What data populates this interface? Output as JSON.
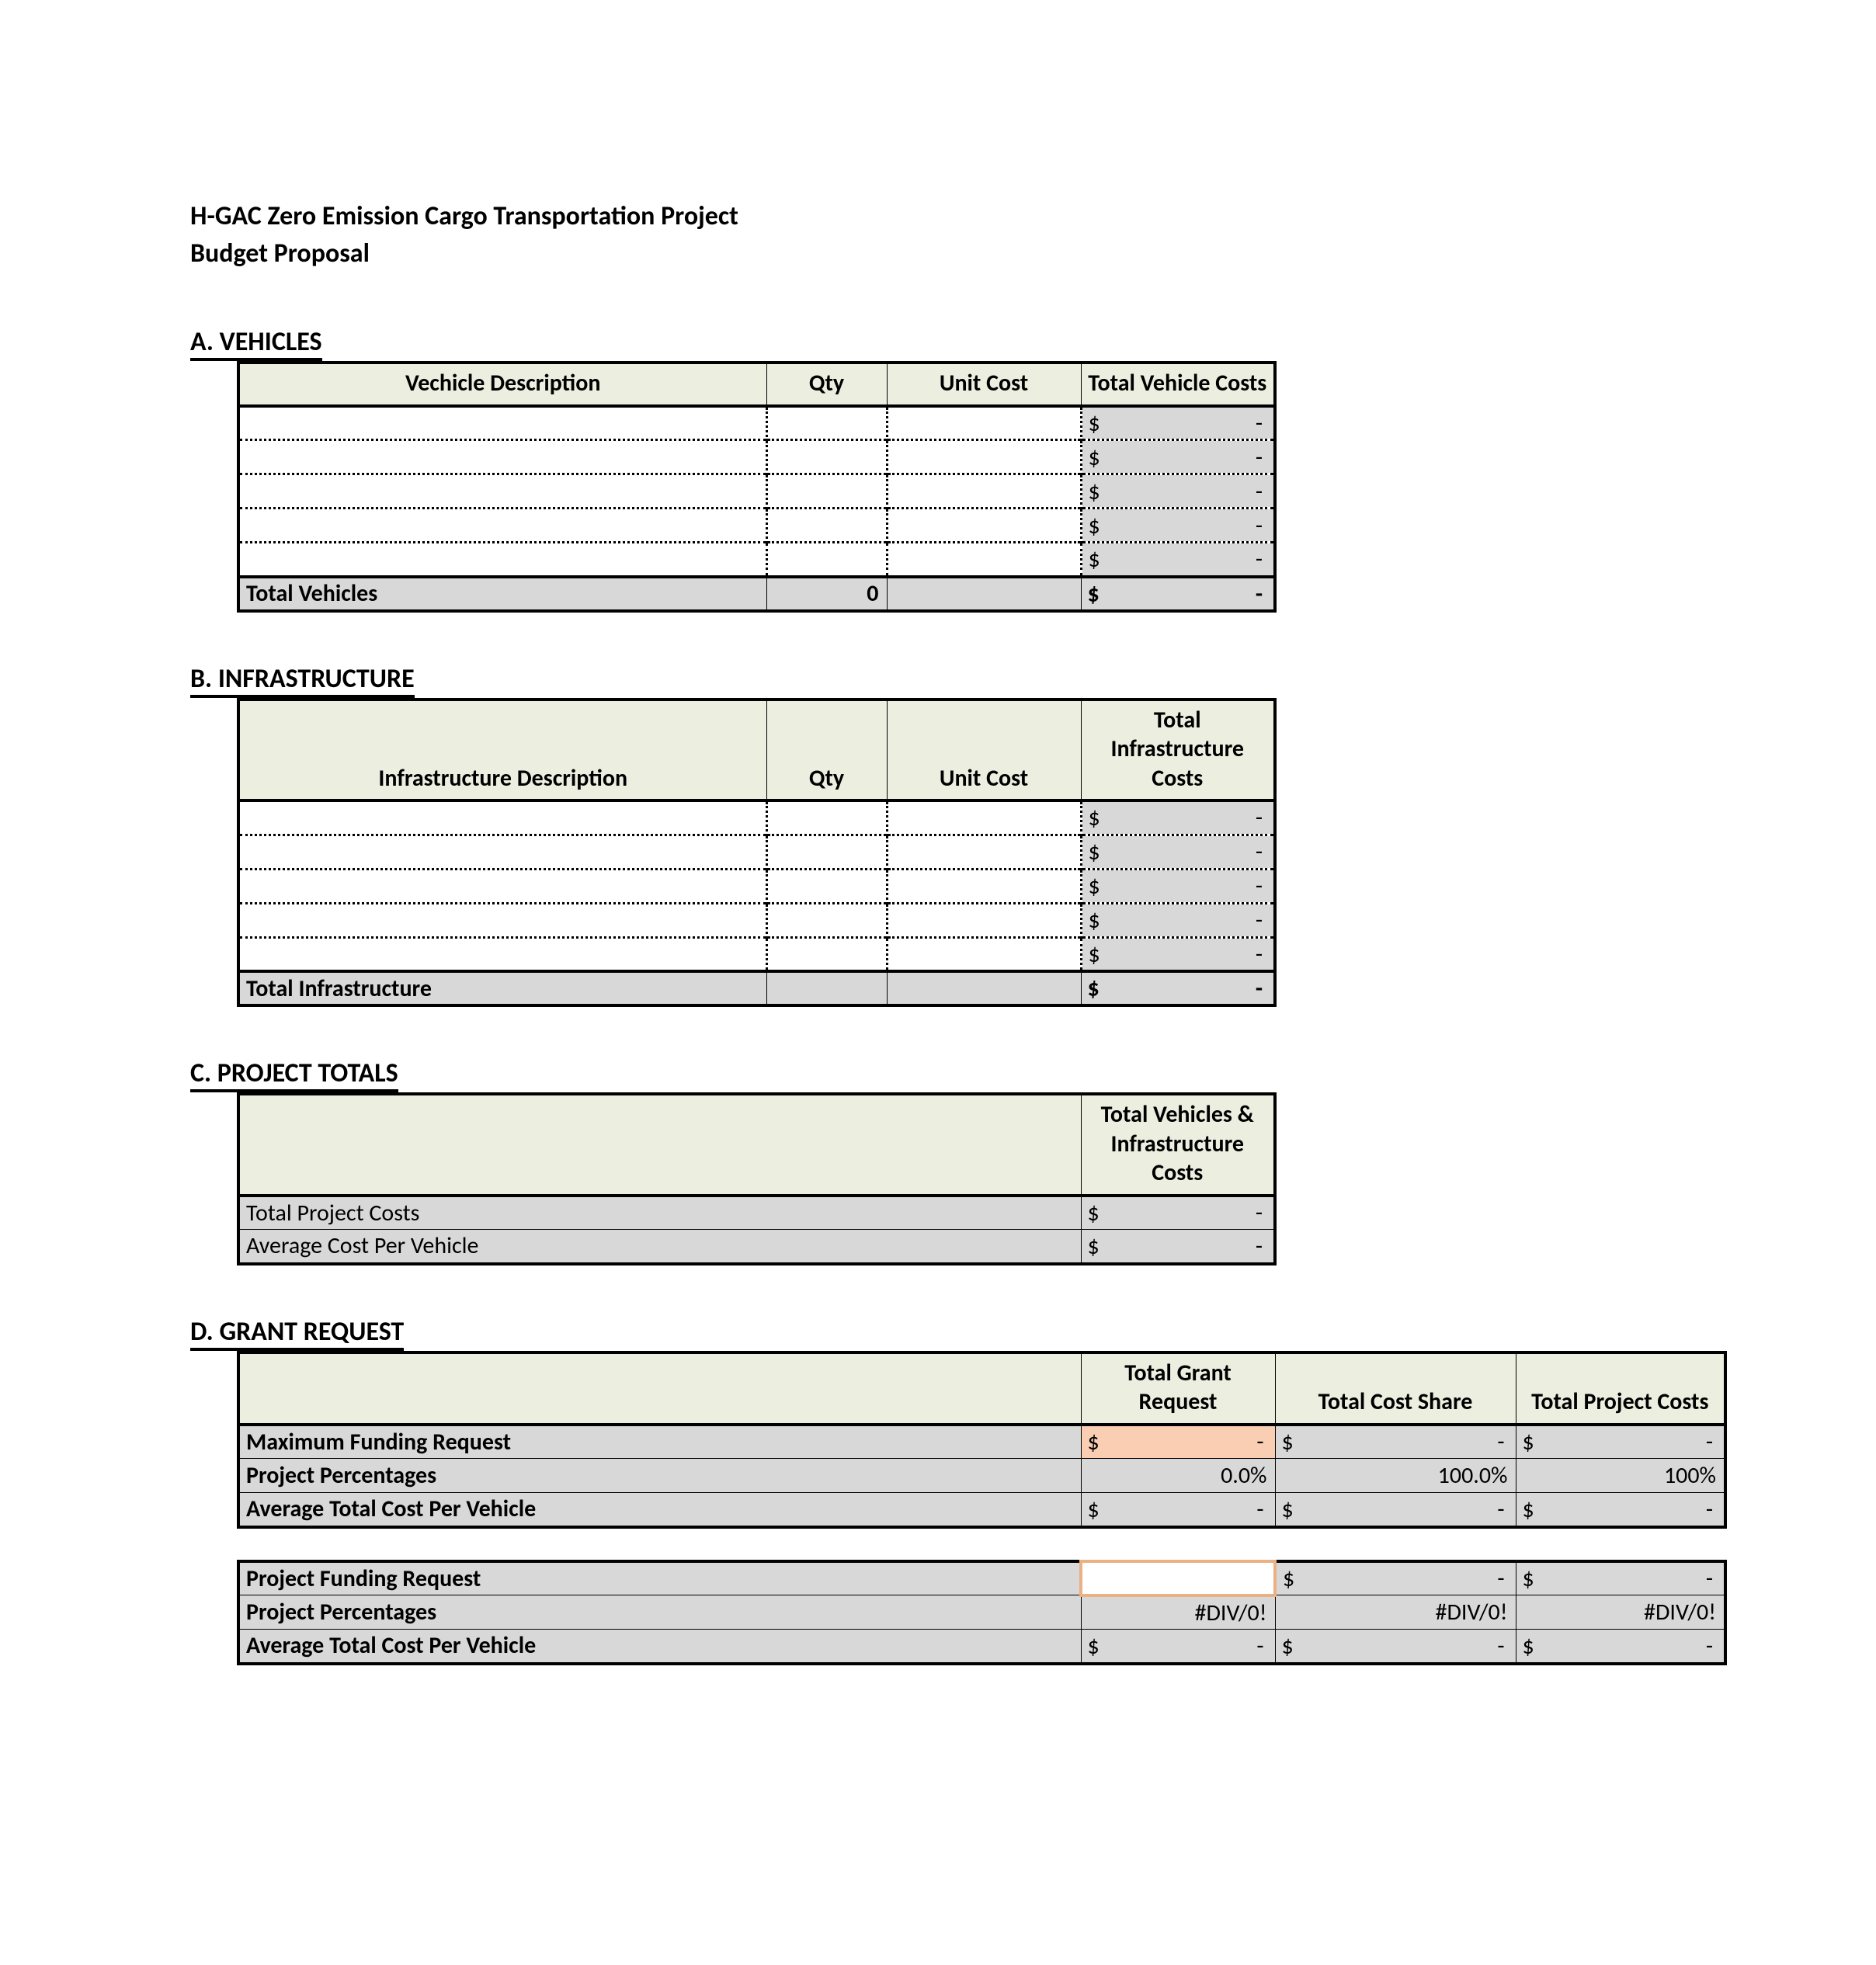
{
  "colors": {
    "header_bg": "#eceee0",
    "grey_bg": "#d8d8d8",
    "highlight_bg": "#f9ceb2",
    "edit_border": "#eab184",
    "page_bg": "#ffffff",
    "text": "#000000",
    "table_border": "#000000"
  },
  "typography": {
    "font_family": "Calibri, Arial, sans-serif",
    "title_fontsize": 34,
    "heading_fontsize": 34,
    "cell_fontsize": 30,
    "bold_weight": 700
  },
  "title": {
    "line1": "H-GAC Zero Emission Cargo Transportation Project",
    "line2": "Budget Proposal"
  },
  "currency_symbol": "$",
  "dash": "-",
  "sections": {
    "a": {
      "heading": "A. VEHICLES",
      "columns": {
        "desc": "Vechicle Description",
        "qty": "Qty",
        "unit": "Unit Cost",
        "total": "Total Vehicle Costs"
      },
      "rows": [
        {
          "desc": "",
          "qty": "",
          "unit": "",
          "total": "-"
        },
        {
          "desc": "",
          "qty": "",
          "unit": "",
          "total": "-"
        },
        {
          "desc": "",
          "qty": "",
          "unit": "",
          "total": "-"
        },
        {
          "desc": "",
          "qty": "",
          "unit": "",
          "total": "-"
        },
        {
          "desc": "",
          "qty": "",
          "unit": "",
          "total": "-"
        }
      ],
      "total_row": {
        "label": "Total Vehicles",
        "qty": "0",
        "unit": "",
        "total": "-"
      }
    },
    "b": {
      "heading": "B. INFRASTRUCTURE",
      "columns": {
        "desc": "Infrastructure Description",
        "qty": "Qty",
        "unit": "Unit Cost",
        "total": "Total Infrastructure Costs"
      },
      "rows": [
        {
          "desc": "",
          "qty": "",
          "unit": "",
          "total": "-"
        },
        {
          "desc": "",
          "qty": "",
          "unit": "",
          "total": "-"
        },
        {
          "desc": "",
          "qty": "",
          "unit": "",
          "total": "-"
        },
        {
          "desc": "",
          "qty": "",
          "unit": "",
          "total": "-"
        },
        {
          "desc": "",
          "qty": "",
          "unit": "",
          "total": "-"
        }
      ],
      "total_row": {
        "label": "Total Infrastructure",
        "qty": "",
        "unit": "",
        "total": "-"
      }
    },
    "c": {
      "heading": "C. PROJECT TOTALS",
      "columns": {
        "total": "Total Vehicles & Infrastructure Costs"
      },
      "rows": [
        {
          "label": "Total Project Costs",
          "total": "-"
        },
        {
          "label": "Average Cost Per Vehicle",
          "total": "-"
        }
      ]
    },
    "d": {
      "heading": "D. GRANT REQUEST",
      "columns": {
        "grant": "Total Grant Request",
        "share": "Total Cost Share",
        "proj": "Total Project Costs"
      },
      "table1": [
        {
          "label": "Maximum Funding Request",
          "grant_cur": true,
          "grant_highlight": true,
          "grant": "-",
          "share_cur": true,
          "share": "-",
          "proj_cur": true,
          "proj": "-"
        },
        {
          "label": "Project Percentages",
          "grant_cur": false,
          "grant": "0.0%",
          "share_cur": false,
          "share": "100.0%",
          "proj_cur": false,
          "proj": "100%"
        },
        {
          "label": "Average Total Cost Per Vehicle",
          "grant_cur": true,
          "grant": "-",
          "share_cur": true,
          "share": "-",
          "proj_cur": true,
          "proj": "-"
        }
      ],
      "table2": [
        {
          "label": "Project Funding Request",
          "grant_edit": true,
          "grant_cur": false,
          "grant": "",
          "share_cur": true,
          "share": "-",
          "proj_cur": true,
          "proj": "-"
        },
        {
          "label": "Project Percentages",
          "grant_cur": false,
          "grant": "#DIV/0!",
          "share_cur": false,
          "share": "#DIV/0!",
          "proj_cur": false,
          "proj": "#DIV/0!"
        },
        {
          "label": "Average Total Cost Per Vehicle",
          "grant_cur": true,
          "grant": "-",
          "share_cur": true,
          "share": "-",
          "proj_cur": true,
          "proj": "-"
        }
      ]
    }
  }
}
